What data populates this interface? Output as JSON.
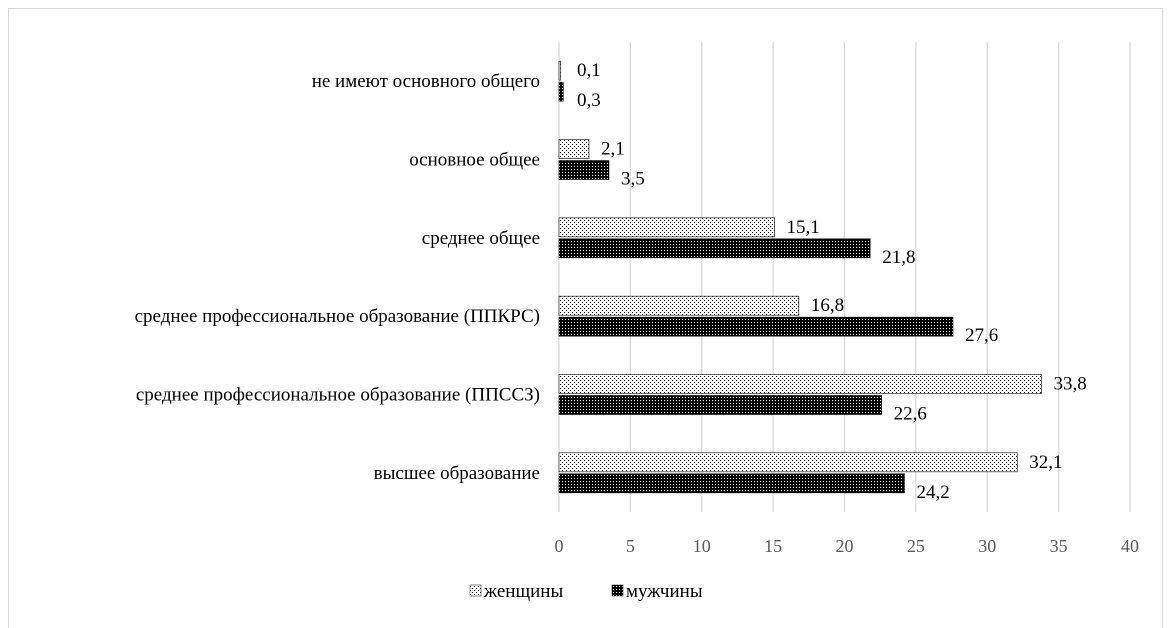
{
  "chart_data": {
    "type": "bar",
    "orientation": "horizontal",
    "categories": [
      "высшее образование",
      "среднее профессиональное образование (ППССЗ)",
      "среднее профессиональное образование (ППКРС)",
      "среднее общее",
      "основное общее",
      "не имеют основного общего"
    ],
    "category_labels": [
      "высшее образование",
      "среднее профессиональное образование (ППССЗ)",
      "среднее профессиональное образование (ППКРС)",
      "среднее общее",
      "основное общее",
      "не имеют основного общего"
    ],
    "series": [
      {
        "name": "женщины",
        "values": [
          32.1,
          33.8,
          16.8,
          15.1,
          2.1,
          0.1
        ],
        "labels": [
          "32,1",
          "33,8",
          "16,8",
          "15,1",
          "2,1",
          "0,1"
        ],
        "pattern": "light-dots",
        "color": "#000000"
      },
      {
        "name": "мужчины",
        "values": [
          24.2,
          22.6,
          27.6,
          21.8,
          3.5,
          0.3
        ],
        "labels": [
          "24,2",
          "22,6",
          "27,6",
          "21,8",
          "3,5",
          "0,3"
        ],
        "pattern": "dark-dots",
        "color": "#000000"
      }
    ],
    "xlim": [
      0,
      40
    ],
    "xticks": [
      0,
      5,
      10,
      15,
      20,
      25,
      30,
      35,
      40
    ],
    "xtick_labels": [
      "0",
      "5",
      "10",
      "15",
      "20",
      "25",
      "30",
      "35",
      "40"
    ],
    "grid": "vertical",
    "gridline_color": "#d9d9d9",
    "legend_position": "bottom",
    "title": "",
    "xlabel": "",
    "ylabel": ""
  }
}
